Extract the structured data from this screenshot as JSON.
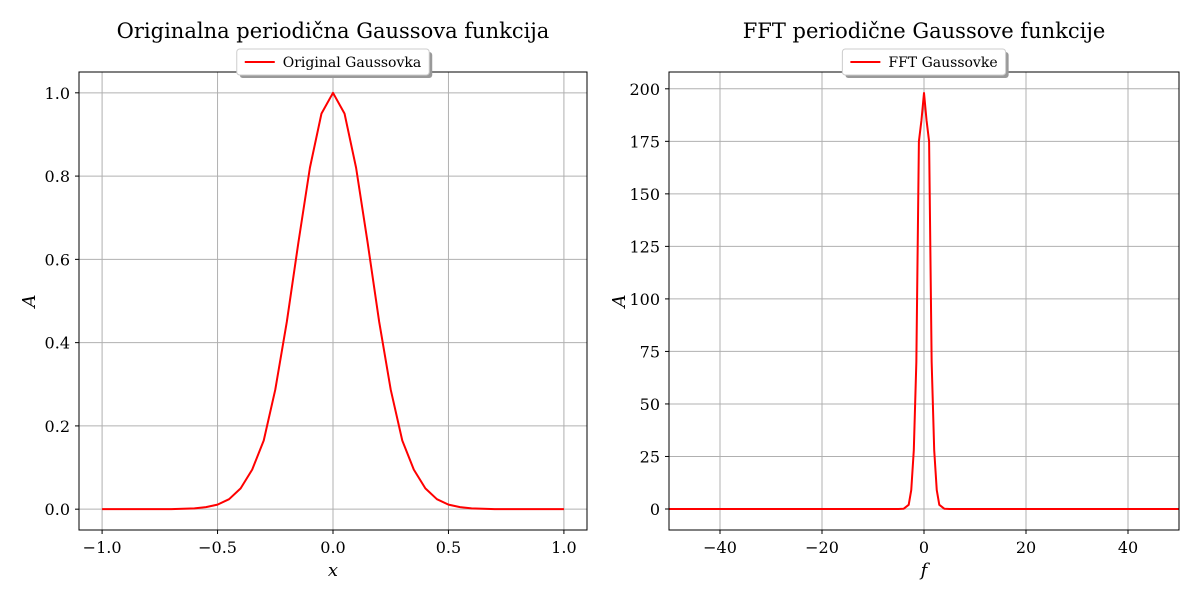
{
  "chart_data": [
    {
      "type": "line",
      "title": "Originalna periodična Gaussova funkcija",
      "xlabel": "x",
      "ylabel": "A",
      "xlim": [
        -1.1,
        1.1
      ],
      "ylim": [
        -0.05,
        1.05
      ],
      "xticks": [
        -1.0,
        -0.5,
        0.0,
        0.5,
        1.0
      ],
      "xtick_labels": [
        "−1.0",
        "−0.5",
        "0.0",
        "0.5",
        "1.0"
      ],
      "yticks": [
        0.0,
        0.2,
        0.4,
        0.6,
        0.8,
        1.0
      ],
      "ytick_labels": [
        "0.0",
        "0.2",
        "0.4",
        "0.6",
        "0.8",
        "1.0"
      ],
      "grid": true,
      "legend_position": "top-center",
      "series": [
        {
          "name": "Original Gaussovka",
          "color": "#ff0000",
          "x": [
            -1.0,
            -0.9,
            -0.8,
            -0.7,
            -0.6,
            -0.55,
            -0.5,
            -0.45,
            -0.4,
            -0.35,
            -0.3,
            -0.25,
            -0.2,
            -0.15,
            -0.1,
            -0.05,
            0.0,
            0.05,
            0.1,
            0.15,
            0.2,
            0.25,
            0.3,
            0.35,
            0.4,
            0.45,
            0.5,
            0.55,
            0.6,
            0.7,
            0.8,
            0.9,
            1.0
          ],
          "y": [
            0.0,
            0.0,
            0.0,
            0.0002,
            0.002,
            0.005,
            0.011,
            0.024,
            0.05,
            0.095,
            0.165,
            0.287,
            0.45,
            0.64,
            0.82,
            0.95,
            1.0,
            0.95,
            0.82,
            0.64,
            0.45,
            0.287,
            0.165,
            0.095,
            0.05,
            0.024,
            0.011,
            0.005,
            0.002,
            0.0002,
            0.0,
            0.0,
            0.0
          ]
        }
      ]
    },
    {
      "type": "line",
      "title": "FFT periodične Gaussove funkcije",
      "xlabel": "f",
      "ylabel": "A",
      "xlim": [
        -50,
        50
      ],
      "ylim": [
        -10,
        208
      ],
      "xticks": [
        -40,
        -20,
        0,
        20,
        40
      ],
      "xtick_labels": [
        "−40",
        "−20",
        "0",
        "20",
        "40"
      ],
      "yticks": [
        0,
        25,
        50,
        75,
        100,
        125,
        150,
        175,
        200
      ],
      "ytick_labels": [
        "0",
        "25",
        "50",
        "75",
        "100",
        "125",
        "150",
        "175",
        "200"
      ],
      "grid": true,
      "legend_position": "top-center",
      "series": [
        {
          "name": "FFT Gaussovke",
          "color": "#ff0000",
          "x": [
            -50,
            -5,
            -4,
            -3,
            -2.5,
            -2,
            -1.5,
            -1,
            -0.5,
            0,
            0.5,
            1,
            1.5,
            2,
            2.5,
            3,
            4,
            5,
            50
          ],
          "y": [
            0,
            0,
            0.1,
            2,
            9,
            28,
            70,
            175,
            185,
            198,
            185,
            175,
            70,
            28,
            9,
            2,
            0.1,
            0,
            0
          ]
        }
      ]
    }
  ]
}
